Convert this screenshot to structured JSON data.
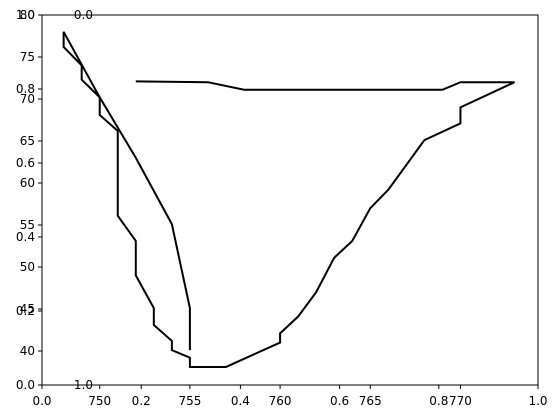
{
  "chart_data": {
    "type": "line",
    "x": [
      752.0,
      756.0,
      758.0,
      769.0,
      770.0,
      773.0,
      770.0,
      770.0,
      768.0,
      766.0,
      765.0,
      764.0,
      763.0,
      762.0,
      761.0,
      760.0,
      760.0,
      757.0,
      755.0,
      755.0,
      754.0,
      754.0,
      753.0,
      753.0,
      752.0,
      752.0,
      751.0,
      751.0,
      750.0,
      750.0,
      749.0,
      749.0,
      748.0,
      748.0,
      750.0,
      752.0,
      754.0,
      755.0,
      755.0
    ],
    "series": [
      {
        "color": "#000000",
        "values": [
          72.1,
          72.0,
          71.1,
          71.1,
          72.0,
          72.0,
          69.0,
          67.1,
          65.1,
          59.2,
          57.0,
          53.1,
          51.1,
          47.0,
          44.1,
          42.1,
          41.0,
          38.1,
          38.1,
          39.2,
          40.1,
          41.2,
          43.1,
          45.1,
          49.0,
          53.1,
          56.1,
          66.2,
          68.1,
          70.2,
          72.3,
          74.0,
          76.2,
          78.0,
          70.2,
          63.0,
          55.1,
          45.1,
          40.1
        ]
      }
    ],
    "xlim": [
      746.8,
      774.3
    ],
    "xticks": [
      750,
      755,
      760,
      765,
      770
    ],
    "ylim": [
      35.95,
      80
    ],
    "yticks": [
      40,
      45,
      50,
      55,
      60,
      65,
      70,
      75,
      80
    ],
    "x2lim": [
      0,
      1
    ],
    "x2ticks": [
      {
        "value": 0,
        "label": "0.0"
      },
      {
        "value": 0.2,
        "label": "0.2"
      },
      {
        "value": 0.4,
        "label": "0.4"
      },
      {
        "value": 0.6,
        "label": "0.6"
      },
      {
        "value": 0.8,
        "label": "0.8"
      },
      {
        "value": 1,
        "label": "1.0"
      }
    ],
    "y2lim": [
      0,
      1
    ],
    "y2ticks": [
      {
        "value": 0,
        "label": "0.0"
      },
      {
        "value": 0.2,
        "label": "0.2"
      },
      {
        "value": 0.4,
        "label": "0.4"
      },
      {
        "value": 0.6,
        "label": "0.6"
      },
      {
        "value": 0.8,
        "label": "0.8"
      },
      {
        "value": 1,
        "label": "1.0"
      }
    ],
    "y3lim": [
      0,
      1
    ],
    "y3ticks": [
      {
        "value": 0,
        "label": "0.0"
      },
      {
        "value": 1,
        "label": "1.0"
      }
    ]
  }
}
